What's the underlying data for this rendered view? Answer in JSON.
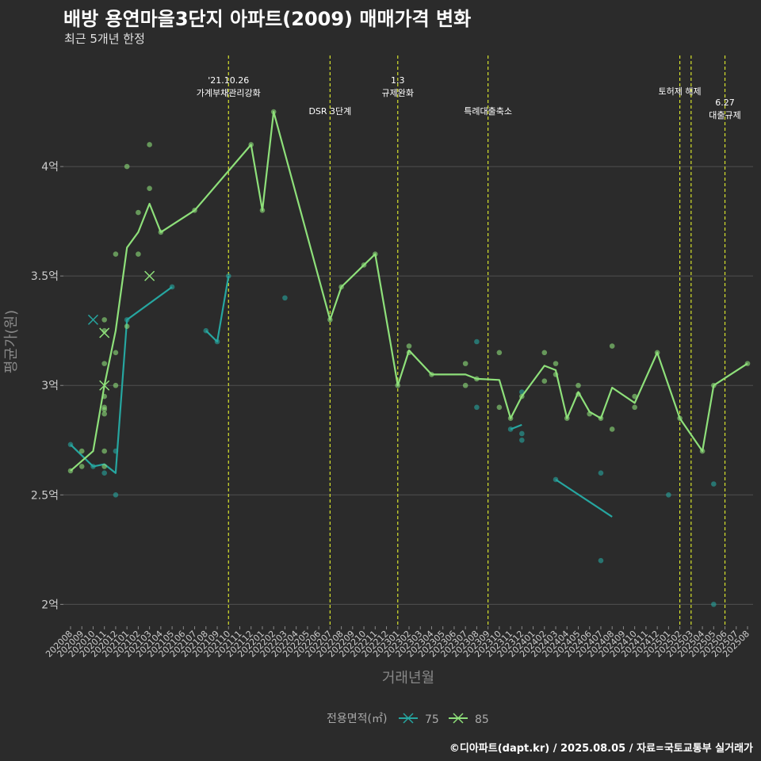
{
  "header": {
    "title": "배방 용연마을3단지 아파트(2009) 매매가격 변화",
    "subtitle": "최근 5개년 한정"
  },
  "footer": {
    "caption": "©디아파트(dapt.kr) / 2025.08.05 / 자료=국토교통부 실거래가"
  },
  "colors": {
    "background": "#2b2b2b",
    "grid": "#505050",
    "series_75": "#26a6a0",
    "series_85": "#8ee07a",
    "event_line": "#d6e22c"
  },
  "chart_data": {
    "type": "line",
    "title": "배방 용연마을3단지 아파트(2009) 매매가격 변화",
    "subtitle": "최근 5개년 한정",
    "xlabel": "거래년월",
    "ylabel": "평균가(원)",
    "ylim": [
      1.9,
      4.5
    ],
    "yticks": [
      {
        "value": 2.0,
        "label": "2억"
      },
      {
        "value": 2.5,
        "label": "2.5억"
      },
      {
        "value": 3.0,
        "label": "3억"
      },
      {
        "value": 3.5,
        "label": "3.5억"
      },
      {
        "value": 4.0,
        "label": "4억"
      }
    ],
    "categories": [
      "202008",
      "202009",
      "202010",
      "202011",
      "202012",
      "202101",
      "202102",
      "202103",
      "202104",
      "202105",
      "202106",
      "202107",
      "202108",
      "202109",
      "202110",
      "202111",
      "202112",
      "202201",
      "202202",
      "202203",
      "202204",
      "202205",
      "202206",
      "202207",
      "202208",
      "202209",
      "202210",
      "202211",
      "202212",
      "202301",
      "202302",
      "202303",
      "202304",
      "202305",
      "202306",
      "202307",
      "202308",
      "202309",
      "202310",
      "202311",
      "202312",
      "202401",
      "202402",
      "202403",
      "202404",
      "202405",
      "202406",
      "202407",
      "202408",
      "202409",
      "202410",
      "202411",
      "202412",
      "202501",
      "202502",
      "202503",
      "202504",
      "202505",
      "202506",
      "202507",
      "202508"
    ],
    "grid": true,
    "legend": {
      "title": "전용면적(㎡)",
      "position": "bottom"
    },
    "series": [
      {
        "name": "75",
        "color": "#26a6a0",
        "line": [
          {
            "x": "202008",
            "y": 2.73
          },
          {
            "x": "202010",
            "y": 2.63
          },
          {
            "x": "202011",
            "y": 2.64
          },
          {
            "x": "202012",
            "y": 2.6
          },
          {
            "x": "202101",
            "y": 3.3
          },
          {
            "x": "202105",
            "y": 3.45
          }
        ],
        "line_segments": [
          [
            {
              "x": "202108",
              "y": 3.25
            },
            {
              "x": "202109",
              "y": 3.2
            },
            {
              "x": "202110",
              "y": 3.5
            }
          ],
          [
            {
              "x": "202311",
              "y": 2.8
            },
            {
              "x": "202312",
              "y": 2.82
            }
          ],
          [
            {
              "x": "202403",
              "y": 2.57
            },
            {
              "x": "202408",
              "y": 2.4
            }
          ]
        ],
        "points": [
          {
            "x": "202008",
            "y": 2.73
          },
          {
            "x": "202010",
            "y": 2.63
          },
          {
            "x": "202011",
            "y": 2.6
          },
          {
            "x": "202012",
            "y": 2.7
          },
          {
            "x": "202012",
            "y": 2.5
          },
          {
            "x": "202101",
            "y": 3.3
          },
          {
            "x": "202105",
            "y": 3.45
          },
          {
            "x": "202108",
            "y": 3.25
          },
          {
            "x": "202109",
            "y": 3.2
          },
          {
            "x": "202110",
            "y": 3.5
          },
          {
            "x": "202203",
            "y": 3.4
          },
          {
            "x": "202308",
            "y": 3.2
          },
          {
            "x": "202308",
            "y": 2.9
          },
          {
            "x": "202311",
            "y": 2.8
          },
          {
            "x": "202312",
            "y": 2.97
          },
          {
            "x": "202312",
            "y": 2.78
          },
          {
            "x": "202312",
            "y": 2.75
          },
          {
            "x": "202403",
            "y": 2.57
          },
          {
            "x": "202407",
            "y": 2.6
          },
          {
            "x": "202407",
            "y": 2.2
          },
          {
            "x": "202501",
            "y": 2.5
          },
          {
            "x": "202505",
            "y": 2.55
          },
          {
            "x": "202505",
            "y": 2.0
          }
        ],
        "cross_points": [
          {
            "x": "202010",
            "y": 3.3
          }
        ]
      },
      {
        "name": "85",
        "color": "#8ee07a",
        "line": [
          {
            "x": "202008",
            "y": 2.61
          },
          {
            "x": "202010",
            "y": 2.7
          },
          {
            "x": "202011",
            "y": 3.0
          },
          {
            "x": "202012",
            "y": 3.25
          },
          {
            "x": "202101",
            "y": 3.63
          },
          {
            "x": "202102",
            "y": 3.7
          },
          {
            "x": "202103",
            "y": 3.83
          },
          {
            "x": "202104",
            "y": 3.7
          },
          {
            "x": "202107",
            "y": 3.8
          },
          {
            "x": "202112",
            "y": 4.1
          },
          {
            "x": "202201",
            "y": 3.8
          },
          {
            "x": "202202",
            "y": 4.25
          },
          {
            "x": "202207",
            "y": 3.3
          },
          {
            "x": "202208",
            "y": 3.45
          },
          {
            "x": "202210",
            "y": 3.55
          },
          {
            "x": "202211",
            "y": 3.6
          },
          {
            "x": "202301",
            "y": 3.0
          },
          {
            "x": "202302",
            "y": 3.16
          },
          {
            "x": "202304",
            "y": 3.05
          },
          {
            "x": "202307",
            "y": 3.05
          },
          {
            "x": "202308",
            "y": 3.03
          },
          {
            "x": "202310",
            "y": 3.025
          },
          {
            "x": "202311",
            "y": 2.85
          },
          {
            "x": "202312",
            "y": 2.95
          },
          {
            "x": "202402",
            "y": 3.09
          },
          {
            "x": "202403",
            "y": 3.07
          },
          {
            "x": "202404",
            "y": 2.85
          },
          {
            "x": "202405",
            "y": 2.97
          },
          {
            "x": "202406",
            "y": 2.88
          },
          {
            "x": "202407",
            "y": 2.85
          },
          {
            "x": "202408",
            "y": 2.99
          },
          {
            "x": "202410",
            "y": 2.92
          },
          {
            "x": "202412",
            "y": 3.15
          },
          {
            "x": "202502",
            "y": 2.85
          },
          {
            "x": "202504",
            "y": 2.7
          },
          {
            "x": "202505",
            "y": 3.0
          },
          {
            "x": "202508",
            "y": 3.1
          }
        ],
        "points": [
          {
            "x": "202008",
            "y": 2.61
          },
          {
            "x": "202009",
            "y": 2.7
          },
          {
            "x": "202009",
            "y": 2.63
          },
          {
            "x": "202011",
            "y": 3.3
          },
          {
            "x": "202011",
            "y": 3.25
          },
          {
            "x": "202011",
            "y": 3.1
          },
          {
            "x": "202011",
            "y": 2.95
          },
          {
            "x": "202011",
            "y": 2.9
          },
          {
            "x": "202011",
            "y": 2.89
          },
          {
            "x": "202011",
            "y": 2.87
          },
          {
            "x": "202011",
            "y": 2.7
          },
          {
            "x": "202011",
            "y": 2.63
          },
          {
            "x": "202012",
            "y": 3.6
          },
          {
            "x": "202012",
            "y": 3.15
          },
          {
            "x": "202012",
            "y": 3.0
          },
          {
            "x": "202101",
            "y": 4.0
          },
          {
            "x": "202101",
            "y": 3.27
          },
          {
            "x": "202102",
            "y": 3.79
          },
          {
            "x": "202102",
            "y": 3.6
          },
          {
            "x": "202103",
            "y": 4.1
          },
          {
            "x": "202103",
            "y": 3.9
          },
          {
            "x": "202104",
            "y": 3.7
          },
          {
            "x": "202107",
            "y": 3.8
          },
          {
            "x": "202112",
            "y": 4.1
          },
          {
            "x": "202201",
            "y": 3.8
          },
          {
            "x": "202202",
            "y": 4.25
          },
          {
            "x": "202207",
            "y": 3.3
          },
          {
            "x": "202208",
            "y": 3.45
          },
          {
            "x": "202210",
            "y": 3.55
          },
          {
            "x": "202211",
            "y": 3.6
          },
          {
            "x": "202301",
            "y": 3.0
          },
          {
            "x": "202302",
            "y": 3.18
          },
          {
            "x": "202302",
            "y": 3.15
          },
          {
            "x": "202304",
            "y": 3.05
          },
          {
            "x": "202307",
            "y": 3.1
          },
          {
            "x": "202307",
            "y": 3.0
          },
          {
            "x": "202308",
            "y": 3.03
          },
          {
            "x": "202310",
            "y": 3.15
          },
          {
            "x": "202310",
            "y": 2.9
          },
          {
            "x": "202311",
            "y": 2.85
          },
          {
            "x": "202312",
            "y": 2.95
          },
          {
            "x": "202402",
            "y": 3.15
          },
          {
            "x": "202402",
            "y": 3.02
          },
          {
            "x": "202403",
            "y": 3.1
          },
          {
            "x": "202403",
            "y": 3.05
          },
          {
            "x": "202404",
            "y": 2.85
          },
          {
            "x": "202405",
            "y": 3.0
          },
          {
            "x": "202405",
            "y": 2.96
          },
          {
            "x": "202406",
            "y": 2.87
          },
          {
            "x": "202407",
            "y": 2.85
          },
          {
            "x": "202408",
            "y": 3.18
          },
          {
            "x": "202408",
            "y": 2.8
          },
          {
            "x": "202410",
            "y": 2.95
          },
          {
            "x": "202410",
            "y": 2.9
          },
          {
            "x": "202412",
            "y": 3.15
          },
          {
            "x": "202502",
            "y": 2.85
          },
          {
            "x": "202504",
            "y": 2.7
          },
          {
            "x": "202505",
            "y": 3.0
          },
          {
            "x": "202508",
            "y": 3.1
          }
        ],
        "cross_points": [
          {
            "x": "202011",
            "y": 3.24
          },
          {
            "x": "202011",
            "y": 3.0
          },
          {
            "x": "202103",
            "y": 3.5
          }
        ]
      }
    ],
    "event_lines": [
      {
        "x": "202110",
        "label_lines": [
          "'21.10.26",
          "가계부채관리강화"
        ],
        "label_y": 4.38
      },
      {
        "x": "202207",
        "label_lines": [
          "DSR 3단계"
        ],
        "label_y": 4.24
      },
      {
        "x": "202301",
        "label_lines": [
          "1.3",
          "규제완화"
        ],
        "label_y": 4.38
      },
      {
        "x": "202309",
        "label_lines": [
          "특례대출축소"
        ],
        "label_y": 4.24
      },
      {
        "x": "202502",
        "label_lines": [
          "토허제 해제"
        ],
        "label_y": 4.33
      },
      {
        "x": "202503",
        "label_lines": [],
        "label_y": 4.33
      },
      {
        "x": "202506",
        "label_lines": [
          "6.27",
          "대출규제"
        ],
        "label_y": 4.28
      }
    ]
  }
}
